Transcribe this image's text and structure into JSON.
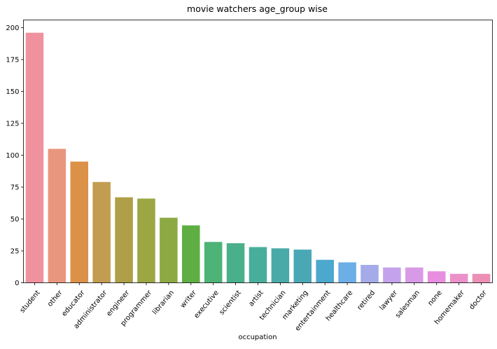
{
  "chart_data": {
    "type": "bar",
    "title": "movie watchers age_group wise",
    "xlabel": "occupation",
    "ylabel": "",
    "ylim": [
      0,
      206
    ],
    "yticks": [
      0,
      25,
      50,
      75,
      100,
      125,
      150,
      175,
      200
    ],
    "grid": false,
    "categories": [
      "student",
      "other",
      "educator",
      "administrator",
      "engineer",
      "programmer",
      "librarian",
      "writer",
      "executive",
      "scientist",
      "artist",
      "technician",
      "marketing",
      "entertainment",
      "healthcare",
      "retired",
      "lawyer",
      "salesman",
      "none",
      "homemaker",
      "doctor"
    ],
    "values": [
      196,
      105,
      95,
      79,
      67,
      66,
      51,
      45,
      32,
      31,
      28,
      27,
      26,
      18,
      16,
      14,
      12,
      12,
      9,
      7,
      7
    ],
    "colors": [
      "#f0929e",
      "#e9967e",
      "#dc9148",
      "#c29c50",
      "#ae9f48",
      "#9ca643",
      "#8ca944",
      "#5eae43",
      "#4db377",
      "#49b08b",
      "#48ae9c",
      "#49aaa8",
      "#4aa8b5",
      "#4ca8cc",
      "#6caee6",
      "#a4abe8",
      "#c4a3ec",
      "#d89ae6",
      "#e78ee0",
      "#ec90c9",
      "#ec8fb4"
    ]
  }
}
